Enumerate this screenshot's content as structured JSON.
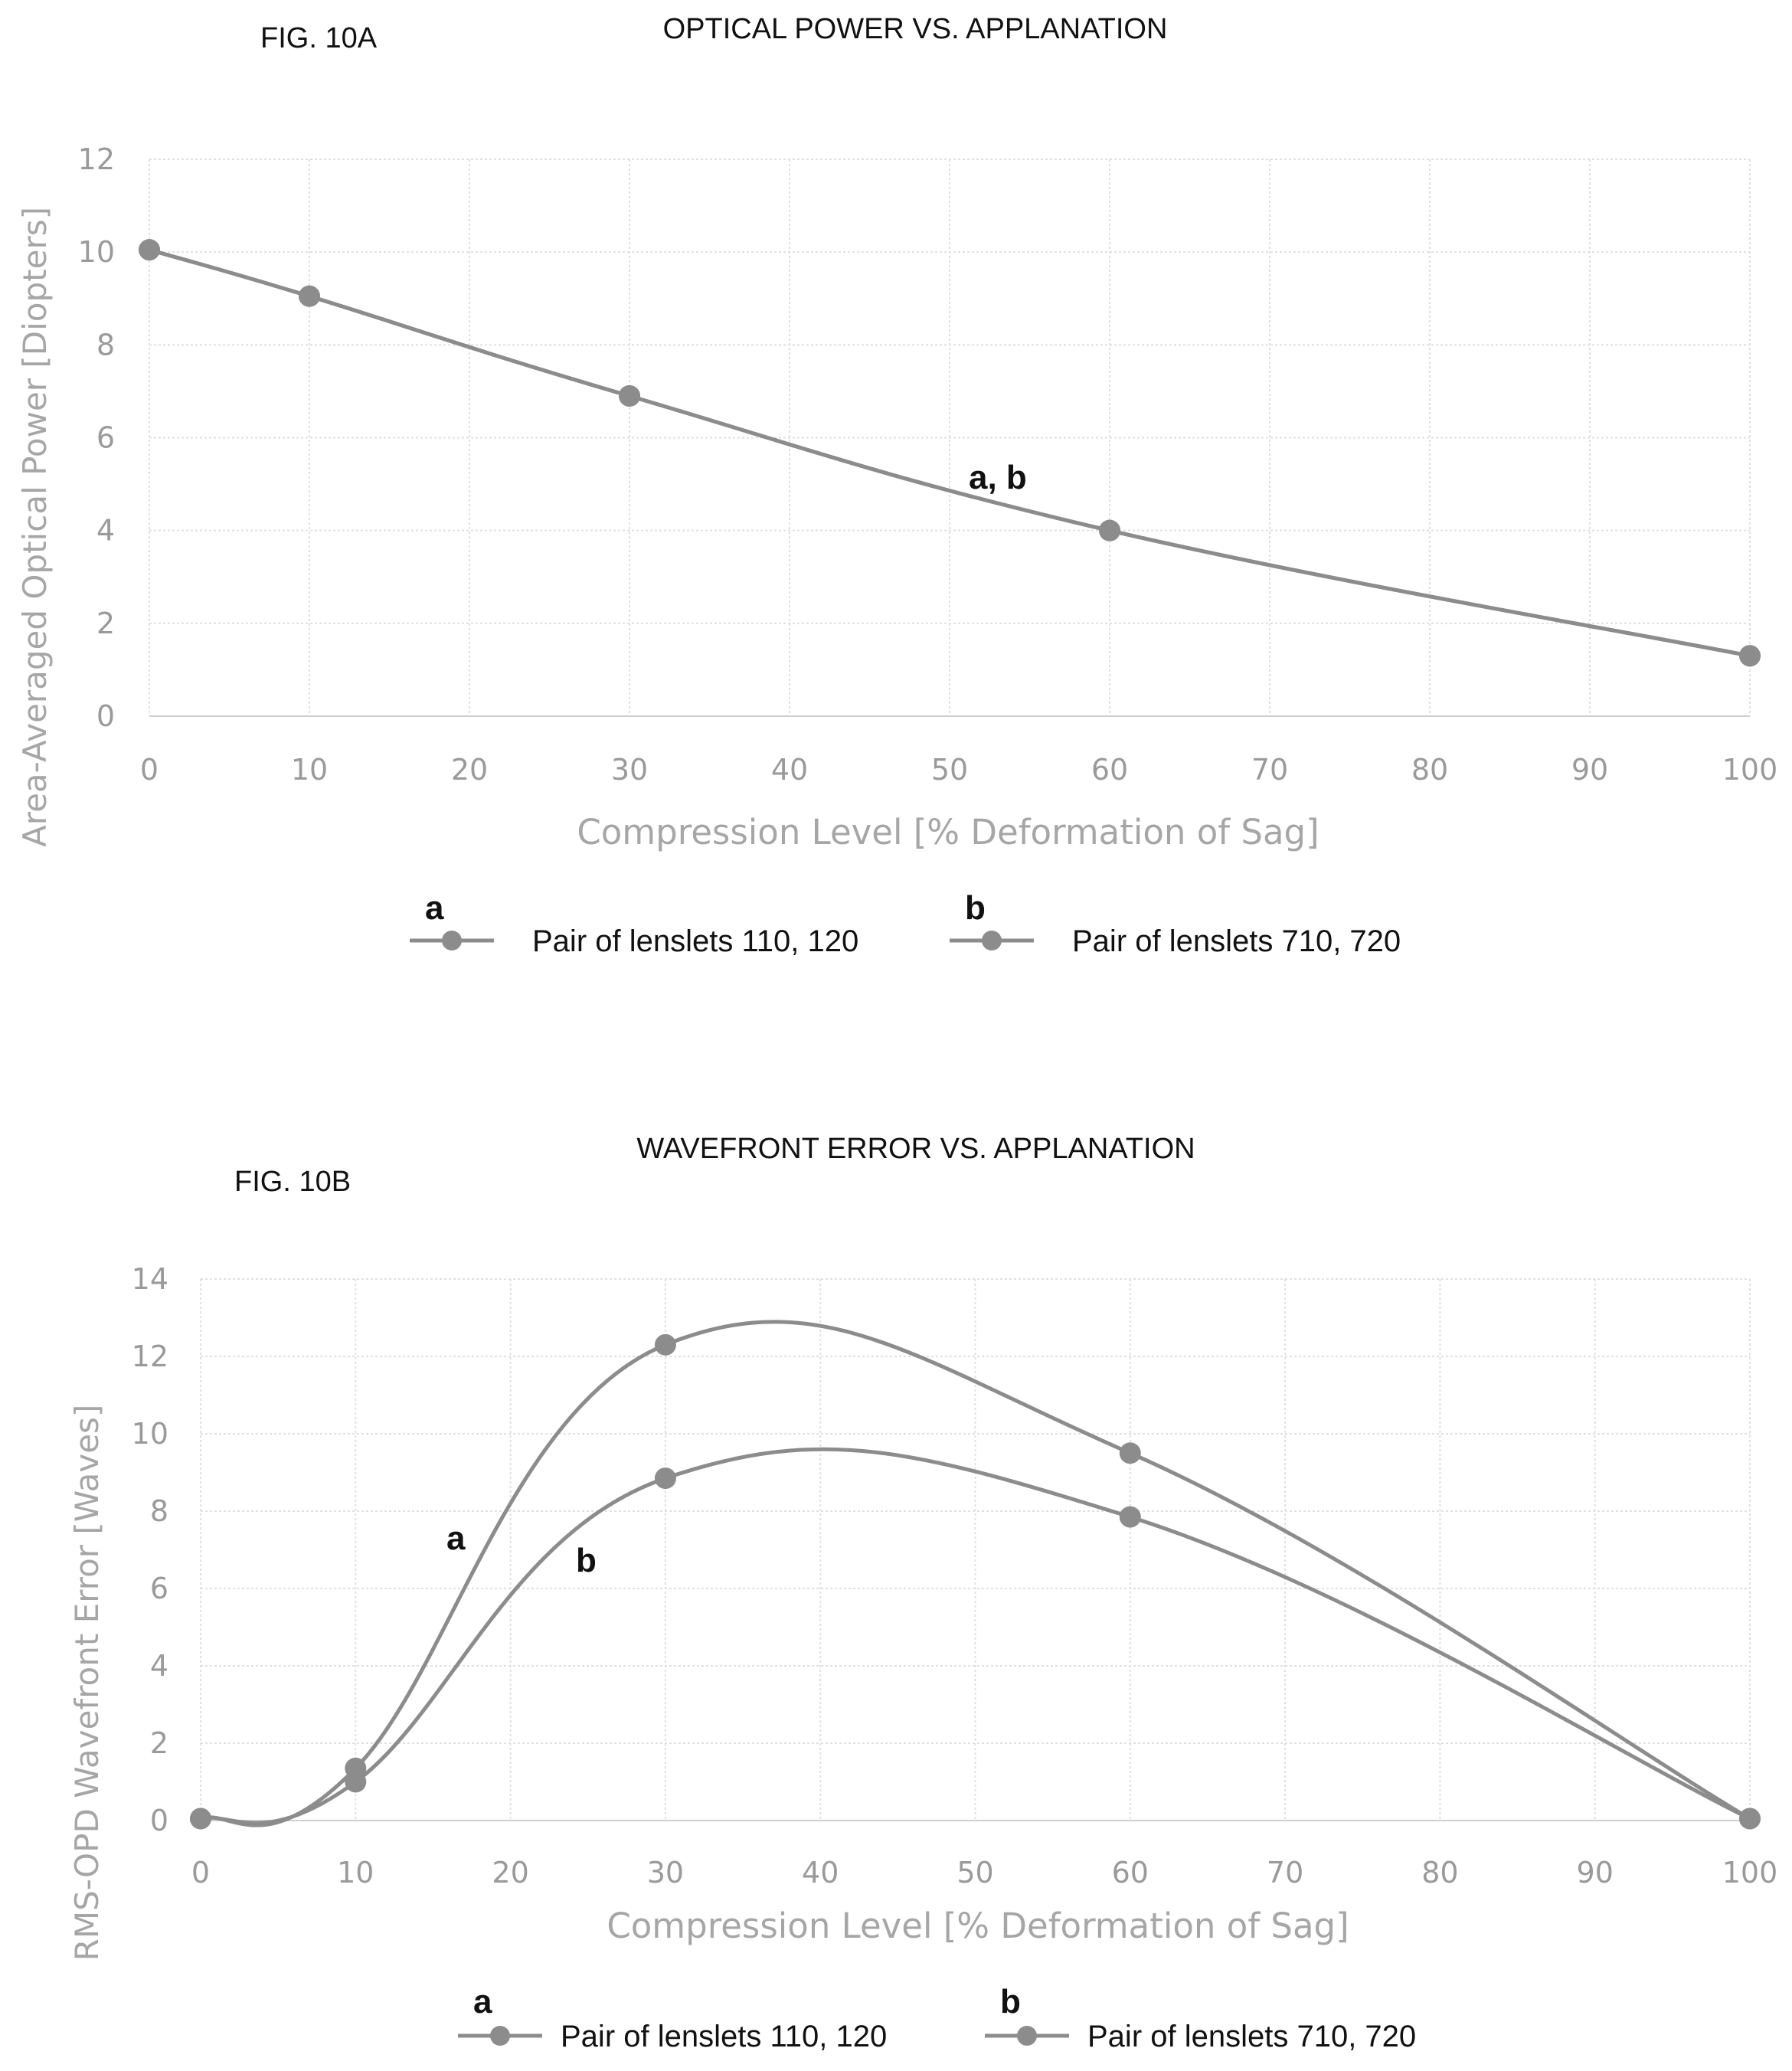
{
  "chart_data": [
    {
      "type": "line",
      "fig_label": "FIG. 10A",
      "title": "OPTICAL POWER VS. APPLANATION",
      "xlabel": "Compression Level [% Deformation of Sag]",
      "ylabel": "Area-Averaged Optical Power [Diopters]",
      "xlim": [
        0,
        100
      ],
      "ylim": [
        0,
        12
      ],
      "x_ticks": [
        "0",
        "10",
        "20",
        "30",
        "40",
        "50",
        "60",
        "70",
        "80",
        "90",
        "100"
      ],
      "y_ticks": [
        "0",
        "2",
        "4",
        "6",
        "8",
        "10",
        "12"
      ],
      "grid": true,
      "legend_position": "bottom",
      "curve_label": "a, b",
      "series": [
        {
          "name": "Pair of lenslets 110, 120",
          "marker_letter": "a",
          "x": [
            0,
            10,
            30,
            60,
            100
          ],
          "values": [
            10.05,
            9.05,
            6.9,
            4.0,
            1.3
          ]
        },
        {
          "name": "Pair of lenslets 710, 720",
          "marker_letter": "b",
          "x": [
            0,
            10,
            30,
            60,
            100
          ],
          "values": [
            10.05,
            9.05,
            6.9,
            4.0,
            1.3
          ]
        }
      ]
    },
    {
      "type": "line",
      "fig_label": "FIG. 10B",
      "title": "WAVEFRONT ERROR VS. APPLANATION",
      "xlabel": "Compression Level [% Deformation of Sag]",
      "ylabel": "RMS-OPD Wavefront Error [Waves]",
      "xlim": [
        0,
        100
      ],
      "ylim": [
        0,
        14
      ],
      "x_ticks": [
        "0",
        "10",
        "20",
        "30",
        "40",
        "50",
        "60",
        "70",
        "80",
        "90",
        "100"
      ],
      "y_ticks": [
        "0",
        "2",
        "4",
        "6",
        "8",
        "10",
        "12",
        "14"
      ],
      "grid": true,
      "legend_position": "bottom",
      "series": [
        {
          "name": "Pair of lenslets 110, 120",
          "marker_letter": "a",
          "x": [
            0,
            10,
            30,
            60,
            100
          ],
          "values": [
            0.05,
            1.35,
            12.3,
            9.5,
            0.05
          ]
        },
        {
          "name": "Pair of lenslets 710, 720",
          "marker_letter": "b",
          "x": [
            0,
            10,
            30,
            60,
            100
          ],
          "values": [
            0.05,
            1.0,
            8.85,
            7.85,
            0.05
          ]
        }
      ]
    }
  ],
  "style": {
    "line_color": "#8c8c8c",
    "grid_color": "#e0e0e0",
    "axis_text_color": "#9a9a9a"
  }
}
